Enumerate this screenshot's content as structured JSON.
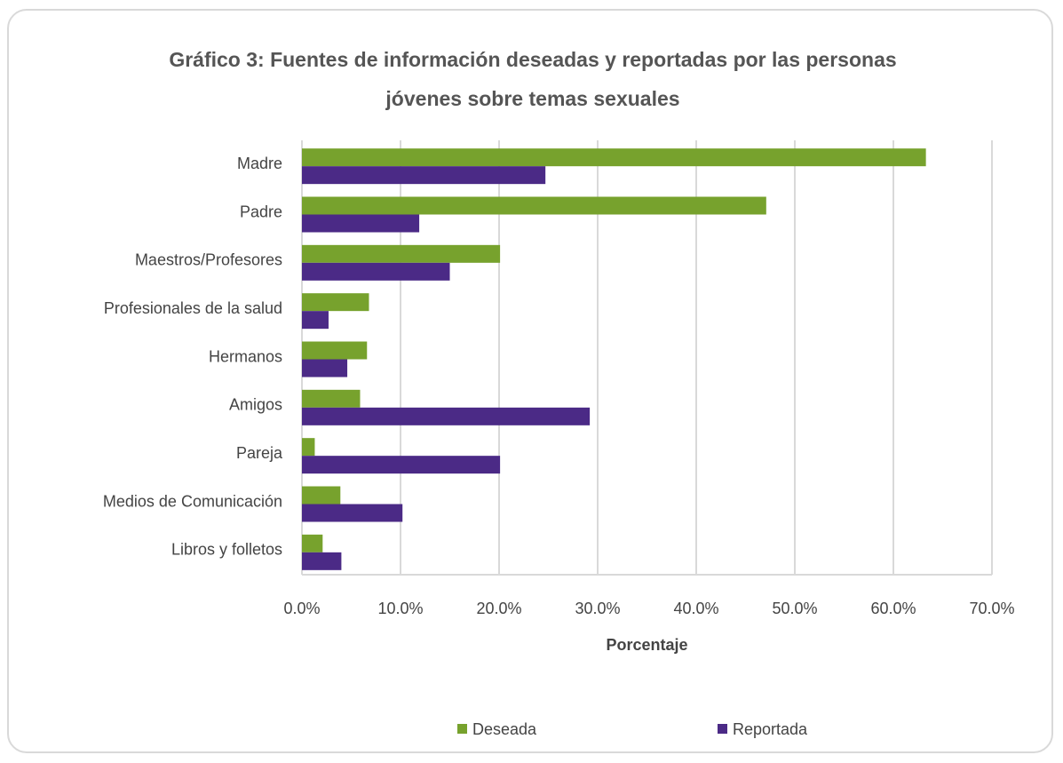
{
  "chart_data": {
    "type": "barh",
    "title": "Gráfico 3: Fuentes de información deseadas y reportadas por las personas jóvenes sobre temas sexuales",
    "categories": [
      "Madre",
      "Padre",
      "Maestros/Profesores",
      "Profesionales de la salud",
      "Hermanos",
      "Amigos",
      "Pareja",
      "Medios de Comunicación",
      "Libros y folletos"
    ],
    "series": [
      {
        "name": "Deseada",
        "color": "#77a22d",
        "values": [
          63.3,
          47.1,
          20.1,
          6.8,
          6.6,
          5.9,
          1.3,
          3.9,
          2.1
        ]
      },
      {
        "name": "Reportada",
        "color": "#4b2a86",
        "values": [
          24.7,
          11.9,
          15.0,
          2.7,
          4.6,
          29.2,
          20.1,
          10.2,
          4.0
        ]
      }
    ],
    "xlabel": "Porcentaje",
    "xlim": [
      0,
      70
    ],
    "xticks": [
      {
        "value": 0,
        "label": "0.0%"
      },
      {
        "value": 10,
        "label": "10.0%"
      },
      {
        "value": 20,
        "label": "20.0%"
      },
      {
        "value": 30,
        "label": "30.0%"
      },
      {
        "value": 40,
        "label": "40.0%"
      },
      {
        "value": 50,
        "label": "50.0%"
      },
      {
        "value": 60,
        "label": "60.0%"
      },
      {
        "value": 70,
        "label": "70.0%"
      }
    ],
    "grid": true,
    "legend": "bottom"
  }
}
